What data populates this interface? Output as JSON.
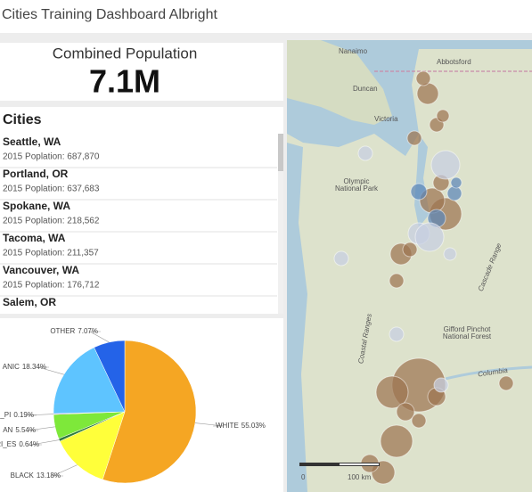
{
  "header": {
    "title": "Cities Training Dashboard Albright"
  },
  "indicator": {
    "title": "Combined Population",
    "value": "7.1M"
  },
  "list": {
    "title": "Cities",
    "items": [
      {
        "name": "Seattle, WA",
        "detail": "2015 Poplation: 687,870"
      },
      {
        "name": "Portland, OR",
        "detail": "2015 Poplation: 637,683"
      },
      {
        "name": "Spokane, WA",
        "detail": "2015 Poplation: 218,562"
      },
      {
        "name": "Tacoma, WA",
        "detail": "2015 Poplation: 211,357"
      },
      {
        "name": "Vancouver, WA",
        "detail": "2015 Poplation: 176,712"
      },
      {
        "name": "Salem, OR"
      }
    ]
  },
  "chart_data": {
    "type": "pie",
    "categories": [
      "WHITE",
      "BLACK",
      "RI_ES",
      "AN",
      "_PI",
      "ANIC",
      "OTHER"
    ],
    "values": [
      55.03,
      13.18,
      0.64,
      5.54,
      0.19,
      18.34,
      7.07
    ],
    "value_labels": [
      "55.03%",
      "13.18%",
      "0.64%",
      "5.54%",
      "0.19%",
      "18.34%",
      "7.07%"
    ],
    "colors": [
      "#f5a623",
      "#ffff3a",
      "#2f7d3a",
      "#7ee83a",
      "#b06ad0",
      "#5ec4ff",
      "#2463e8"
    ]
  },
  "map": {
    "labels": [
      "Nanaimo",
      "Abbotsford",
      "Duncan",
      "Victoria",
      "Olympic",
      "National Park",
      "Gifford Pinchot",
      "National Forest",
      "Cascade Range",
      "Coastal Ranges",
      "Columbia",
      "0",
      "100 km"
    ]
  }
}
